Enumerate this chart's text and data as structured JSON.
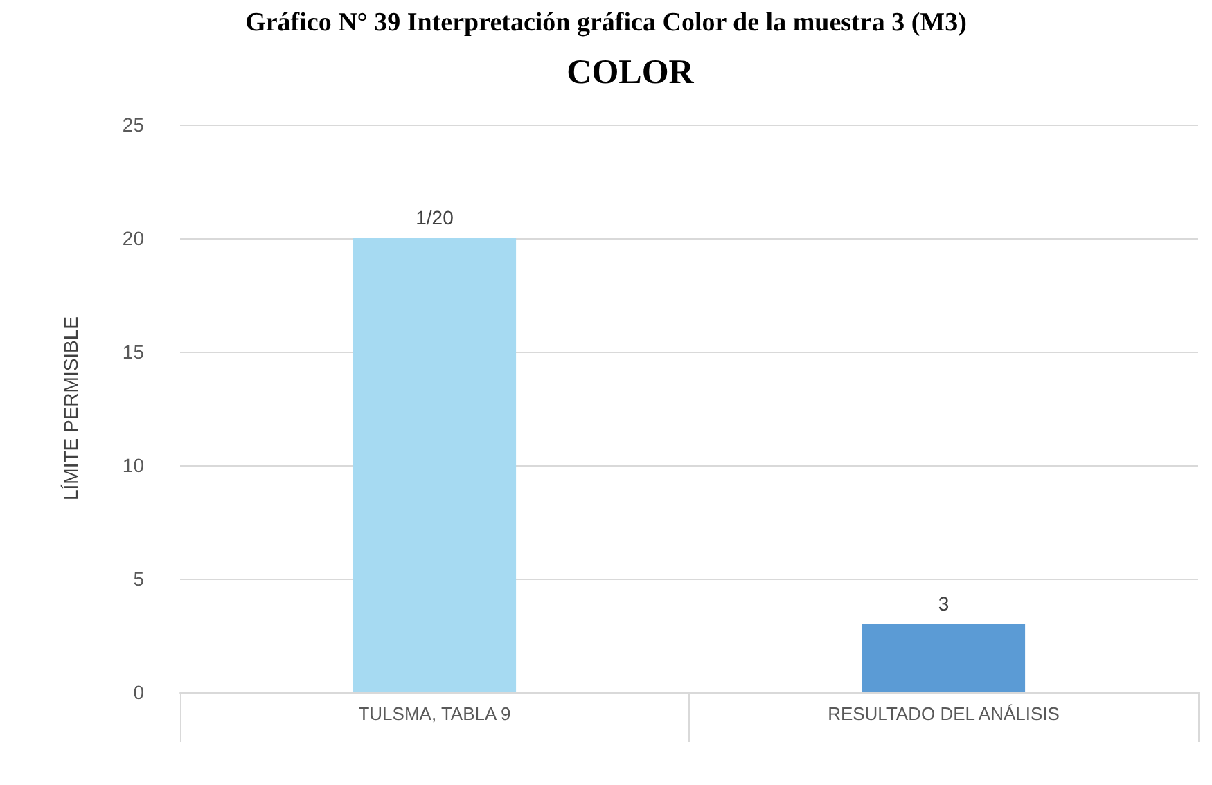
{
  "chart_data": {
    "type": "bar",
    "title": "COLOR",
    "annotations": [
      "Gráfico N° 39 Interpretación gráfica Color de la muestra 3 (M3)"
    ],
    "ylabel": "LÍMITE PERMISIBLE",
    "categories": [
      "TULSMA, TABLA 9",
      "RESULTADO DEL ANÁLISIS"
    ],
    "values": [
      20,
      3
    ],
    "colors": [
      "#a6daf2",
      "#5b9bd5"
    ],
    "value_labels": [
      "1/20",
      "3"
    ],
    "ylim": [
      0,
      25
    ],
    "yticks": [
      0,
      5,
      10,
      15,
      20,
      25
    ],
    "grid": "y"
  }
}
